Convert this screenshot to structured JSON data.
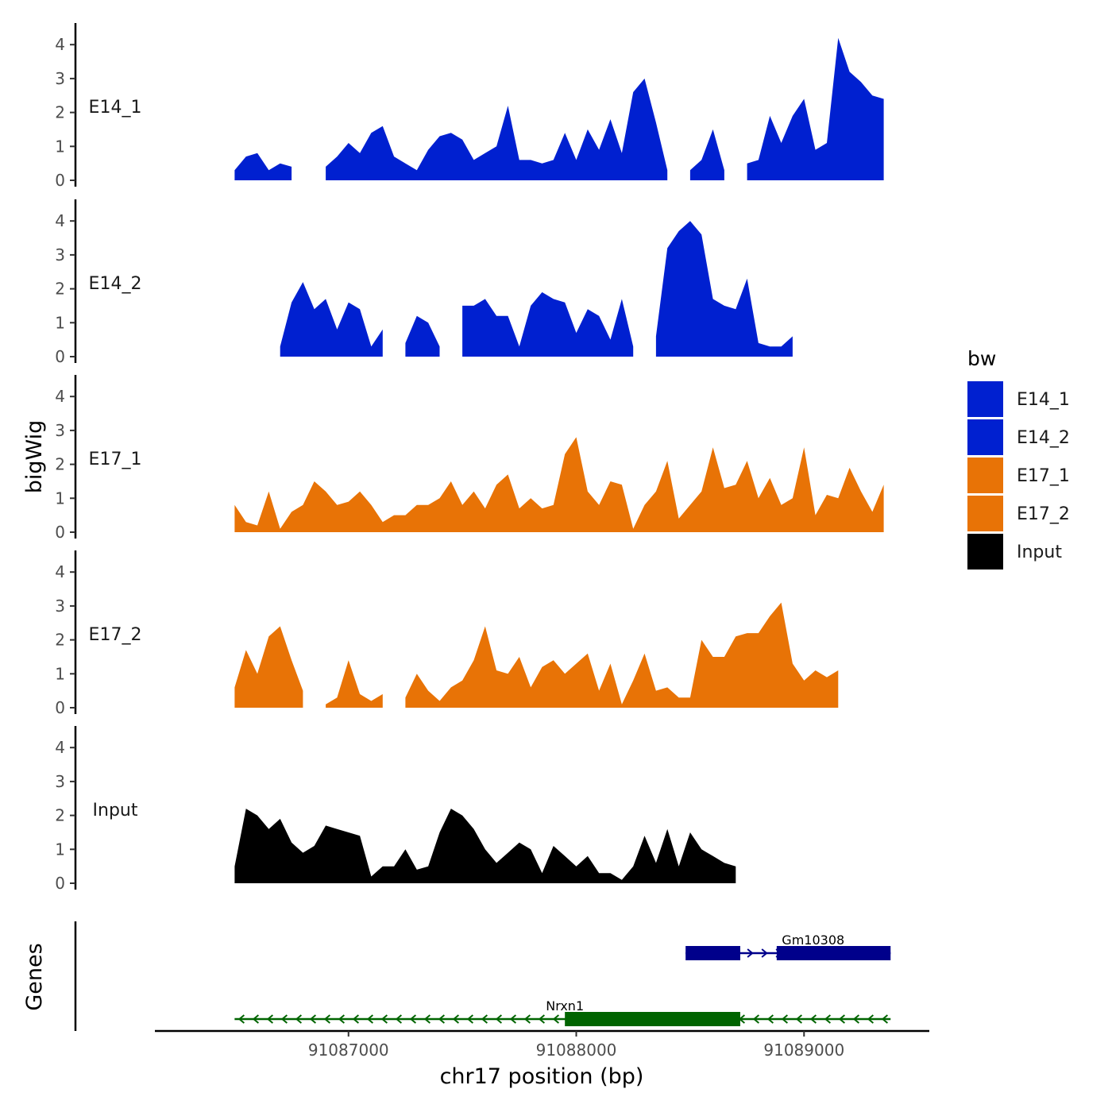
{
  "chart_data": {
    "type": "area",
    "ylabel": "bigWig",
    "xlabel": "chr17 position (bp)",
    "genes_label": "Genes",
    "ylim": [
      0,
      4.6
    ],
    "y_ticks": [
      0,
      1,
      2,
      3,
      4
    ],
    "xlim": [
      91086150,
      91089550
    ],
    "x_ticks": [
      91087000,
      91088000,
      91089000
    ],
    "x_tick_labels": [
      "91087000",
      "91088000",
      "91089000"
    ],
    "x": [
      91086500,
      91086550,
      91086600,
      91086650,
      91086700,
      91086750,
      91086800,
      91086850,
      91086900,
      91086950,
      91087000,
      91087050,
      91087100,
      91087150,
      91087200,
      91087250,
      91087300,
      91087350,
      91087400,
      91087450,
      91087500,
      91087550,
      91087600,
      91087650,
      91087700,
      91087750,
      91087800,
      91087850,
      91087900,
      91087950,
      91088000,
      91088050,
      91088100,
      91088150,
      91088200,
      91088250,
      91088300,
      91088350,
      91088400,
      91088450,
      91088500,
      91088550,
      91088600,
      91088650,
      91088700,
      91088750,
      91088800,
      91088850,
      91088900,
      91088950,
      91089000,
      91089050,
      91089100,
      91089150,
      91089200,
      91089250,
      91089300,
      91089350
    ],
    "legend_title": "bw",
    "series": [
      {
        "name": "E14_1",
        "color": "#0020d0",
        "values": [
          0.3,
          0.7,
          0.8,
          0.3,
          0.5,
          0.4,
          null,
          null,
          0.4,
          0.7,
          1.1,
          0.8,
          1.4,
          1.6,
          0.7,
          0.5,
          0.3,
          0.9,
          1.3,
          1.4,
          1.2,
          0.6,
          0.8,
          1.0,
          2.2,
          0.6,
          0.6,
          0.5,
          0.6,
          1.4,
          0.6,
          1.5,
          0.9,
          1.8,
          0.8,
          2.6,
          3.0,
          1.7,
          0.3,
          null,
          0.3,
          0.6,
          1.5,
          0.3,
          null,
          0.5,
          0.6,
          1.9,
          1.1,
          1.9,
          2.4,
          0.9,
          1.1,
          4.2,
          3.2,
          2.9,
          2.5,
          2.4
        ]
      },
      {
        "name": "E14_2",
        "color": "#0020d0",
        "values": [
          null,
          null,
          null,
          null,
          0.3,
          1.6,
          2.2,
          1.4,
          1.7,
          0.8,
          1.6,
          1.4,
          0.3,
          0.8,
          null,
          0.4,
          1.2,
          1.0,
          0.3,
          null,
          1.5,
          1.5,
          1.7,
          1.2,
          1.2,
          0.3,
          1.5,
          1.9,
          1.7,
          1.6,
          0.7,
          1.4,
          1.2,
          0.5,
          1.7,
          0.3,
          null,
          0.6,
          3.2,
          3.7,
          4.0,
          3.6,
          1.7,
          1.5,
          1.4,
          2.3,
          0.4,
          0.3,
          0.3,
          0.6,
          null,
          null,
          null,
          null,
          null,
          null,
          null,
          null
        ]
      },
      {
        "name": "E17_1",
        "color": "#e87306",
        "values": [
          0.8,
          0.3,
          0.2,
          1.2,
          0.1,
          0.6,
          0.8,
          1.5,
          1.2,
          0.8,
          0.9,
          1.2,
          0.8,
          0.3,
          0.5,
          0.5,
          0.8,
          0.8,
          1.0,
          1.5,
          0.8,
          1.2,
          0.7,
          1.4,
          1.7,
          0.7,
          1.0,
          0.7,
          0.8,
          2.3,
          2.8,
          1.2,
          0.8,
          1.5,
          1.4,
          0.1,
          0.8,
          1.2,
          2.1,
          0.4,
          0.8,
          1.2,
          2.5,
          1.3,
          1.4,
          2.1,
          1.0,
          1.6,
          0.8,
          1.0,
          2.5,
          0.5,
          1.1,
          1.0,
          1.9,
          1.2,
          0.6,
          1.4
        ]
      },
      {
        "name": "E17_2",
        "color": "#e87306",
        "values": [
          0.6,
          1.7,
          1.0,
          2.1,
          2.4,
          1.4,
          0.5,
          null,
          0.1,
          0.3,
          1.4,
          0.4,
          0.2,
          0.4,
          null,
          0.3,
          1.0,
          0.5,
          0.2,
          0.6,
          0.8,
          1.4,
          2.4,
          1.1,
          1.0,
          1.5,
          0.6,
          1.2,
          1.4,
          1.0,
          1.3,
          1.6,
          0.5,
          1.3,
          0.1,
          0.8,
          1.6,
          0.5,
          0.6,
          0.3,
          0.3,
          2.0,
          1.5,
          1.5,
          2.1,
          2.2,
          2.2,
          2.7,
          3.1,
          1.3,
          0.8,
          1.1,
          0.9,
          1.1,
          null,
          null,
          null,
          null
        ]
      },
      {
        "name": "Input",
        "color": "#000000",
        "values": [
          0.5,
          2.2,
          2.0,
          1.6,
          1.9,
          1.2,
          0.9,
          1.1,
          1.7,
          1.6,
          1.5,
          1.4,
          0.2,
          0.5,
          0.5,
          1.0,
          0.4,
          0.5,
          1.5,
          2.2,
          2.0,
          1.6,
          1.0,
          0.6,
          0.9,
          1.2,
          1.0,
          0.3,
          1.1,
          0.8,
          0.5,
          0.8,
          0.3,
          0.3,
          0.1,
          0.5,
          1.4,
          0.6,
          1.6,
          0.5,
          1.5,
          1.0,
          0.8,
          0.6,
          0.5,
          null,
          null,
          null,
          null,
          null,
          null,
          null,
          null,
          null,
          null,
          null,
          null,
          null
        ]
      }
    ],
    "genes": [
      {
        "name": "Gm10308",
        "strand": "+",
        "start": 91088480,
        "end": 91089380,
        "color": "#00008b",
        "exons": [
          [
            91088480,
            91088720
          ],
          [
            91088880,
            91089380
          ]
        ]
      },
      {
        "name": "Nrxn1",
        "strand": "-",
        "start": 91086500,
        "end": 91089380,
        "color": "#006400",
        "exons": [
          [
            91087950,
            91088720
          ]
        ]
      }
    ]
  }
}
